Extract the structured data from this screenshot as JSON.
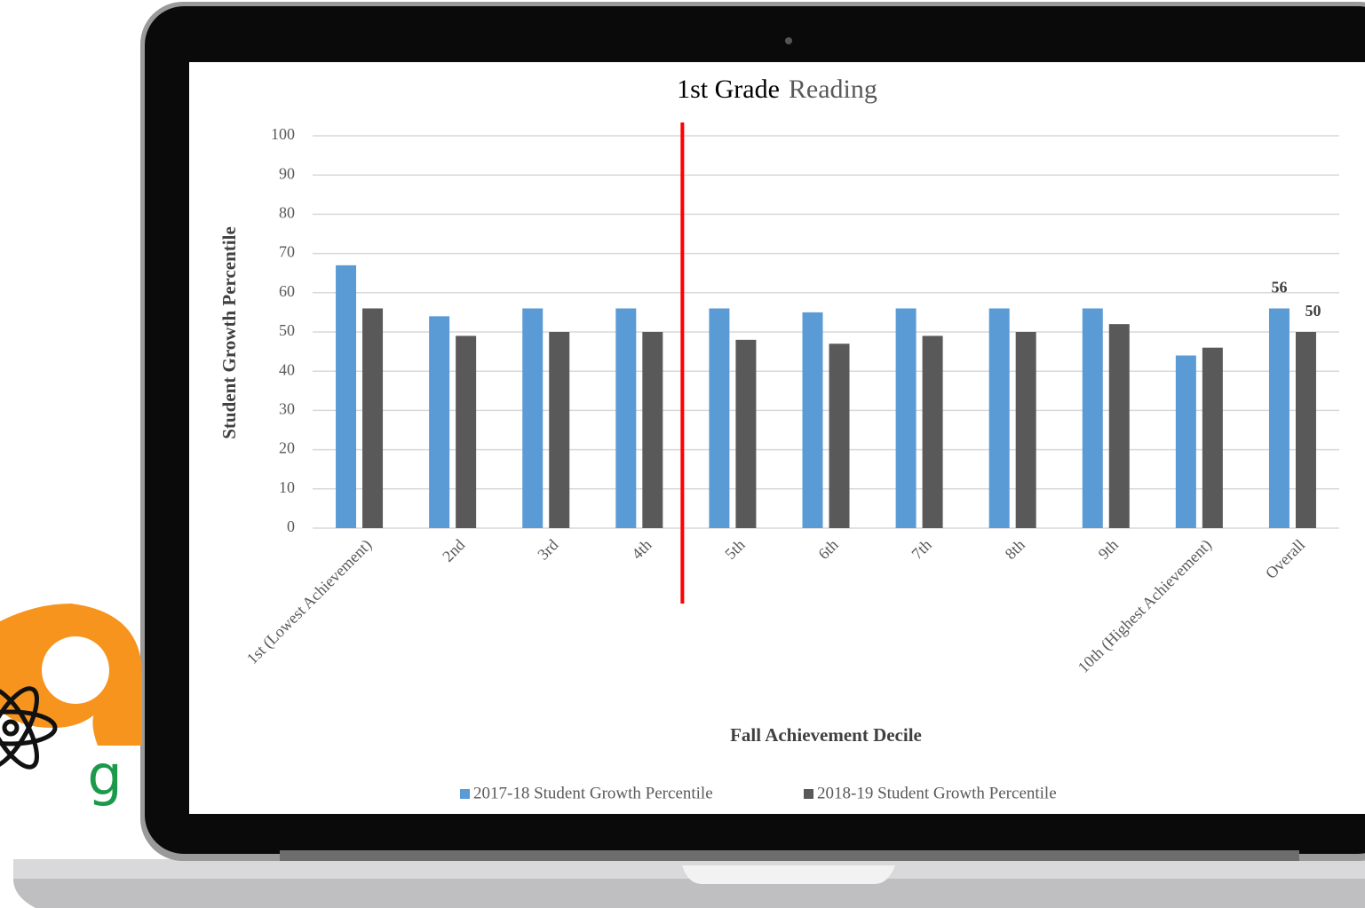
{
  "logo": {
    "text": "g"
  },
  "chart_data": {
    "type": "bar",
    "title": "1st Grade",
    "subject": "Reading",
    "x_label": "Fall Achievement Decile",
    "y_label": "Student Growth Percentile",
    "categories": [
      "1st (Lowest Achievement)",
      "2nd",
      "3rd",
      "4th",
      "5th",
      "6th",
      "7th",
      "8th",
      "9th",
      "10th (Highest Achievement)",
      "Overall"
    ],
    "series": [
      {
        "name": "2017-18 Student Growth Percentile",
        "color": "#5b9bd5",
        "values": [
          67,
          54,
          56,
          56,
          56,
          55,
          56,
          56,
          56,
          44,
          56
        ],
        "value_labels": [
          null,
          null,
          null,
          null,
          null,
          null,
          null,
          null,
          null,
          null,
          "56"
        ]
      },
      {
        "name": "2018-19 Student Growth Percentile",
        "color": "#595959",
        "values": [
          56,
          49,
          50,
          50,
          48,
          47,
          49,
          50,
          52,
          46,
          50
        ],
        "value_labels": [
          null,
          null,
          null,
          null,
          null,
          null,
          null,
          null,
          null,
          null,
          "50"
        ]
      }
    ],
    "ylim": [
      0,
      100
    ],
    "yticks": [
      0,
      10,
      20,
      30,
      40,
      50,
      60,
      70,
      80,
      90,
      100
    ],
    "grid": true,
    "legend": "bottom",
    "divider": {
      "after": 3,
      "color": "#ff0000"
    }
  }
}
